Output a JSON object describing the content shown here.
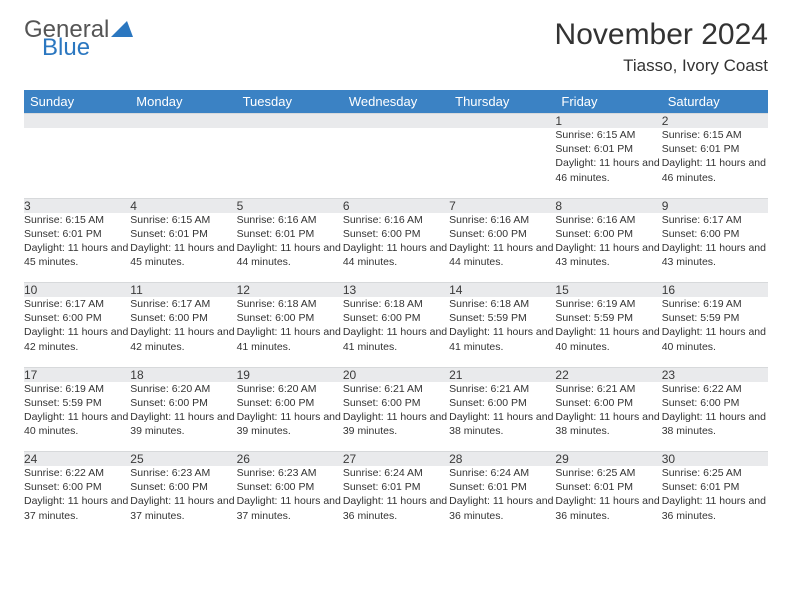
{
  "brand": {
    "part1": "General",
    "part2": "Blue",
    "color1": "#555555",
    "color2": "#2b77c0"
  },
  "title": "November 2024",
  "location": "Tiasso, Ivory Coast",
  "colors": {
    "header_bg": "#3b82c4",
    "header_text": "#ffffff",
    "daynum_bg": "#e9eaec",
    "text": "#333333",
    "page_bg": "#ffffff"
  },
  "fonts": {
    "title_size": 30,
    "location_size": 17,
    "header_size": 13,
    "daynum_size": 12,
    "cell_size": 10.5
  },
  "weekdays": [
    "Sunday",
    "Monday",
    "Tuesday",
    "Wednesday",
    "Thursday",
    "Friday",
    "Saturday"
  ],
  "weeks": [
    [
      null,
      null,
      null,
      null,
      null,
      {
        "n": "1",
        "sr": "6:15 AM",
        "ss": "6:01 PM",
        "dl": "11 hours and 46 minutes."
      },
      {
        "n": "2",
        "sr": "6:15 AM",
        "ss": "6:01 PM",
        "dl": "11 hours and 46 minutes."
      }
    ],
    [
      {
        "n": "3",
        "sr": "6:15 AM",
        "ss": "6:01 PM",
        "dl": "11 hours and 45 minutes."
      },
      {
        "n": "4",
        "sr": "6:15 AM",
        "ss": "6:01 PM",
        "dl": "11 hours and 45 minutes."
      },
      {
        "n": "5",
        "sr": "6:16 AM",
        "ss": "6:01 PM",
        "dl": "11 hours and 44 minutes."
      },
      {
        "n": "6",
        "sr": "6:16 AM",
        "ss": "6:00 PM",
        "dl": "11 hours and 44 minutes."
      },
      {
        "n": "7",
        "sr": "6:16 AM",
        "ss": "6:00 PM",
        "dl": "11 hours and 44 minutes."
      },
      {
        "n": "8",
        "sr": "6:16 AM",
        "ss": "6:00 PM",
        "dl": "11 hours and 43 minutes."
      },
      {
        "n": "9",
        "sr": "6:17 AM",
        "ss": "6:00 PM",
        "dl": "11 hours and 43 minutes."
      }
    ],
    [
      {
        "n": "10",
        "sr": "6:17 AM",
        "ss": "6:00 PM",
        "dl": "11 hours and 42 minutes."
      },
      {
        "n": "11",
        "sr": "6:17 AM",
        "ss": "6:00 PM",
        "dl": "11 hours and 42 minutes."
      },
      {
        "n": "12",
        "sr": "6:18 AM",
        "ss": "6:00 PM",
        "dl": "11 hours and 41 minutes."
      },
      {
        "n": "13",
        "sr": "6:18 AM",
        "ss": "6:00 PM",
        "dl": "11 hours and 41 minutes."
      },
      {
        "n": "14",
        "sr": "6:18 AM",
        "ss": "5:59 PM",
        "dl": "11 hours and 41 minutes."
      },
      {
        "n": "15",
        "sr": "6:19 AM",
        "ss": "5:59 PM",
        "dl": "11 hours and 40 minutes."
      },
      {
        "n": "16",
        "sr": "6:19 AM",
        "ss": "5:59 PM",
        "dl": "11 hours and 40 minutes."
      }
    ],
    [
      {
        "n": "17",
        "sr": "6:19 AM",
        "ss": "5:59 PM",
        "dl": "11 hours and 40 minutes."
      },
      {
        "n": "18",
        "sr": "6:20 AM",
        "ss": "6:00 PM",
        "dl": "11 hours and 39 minutes."
      },
      {
        "n": "19",
        "sr": "6:20 AM",
        "ss": "6:00 PM",
        "dl": "11 hours and 39 minutes."
      },
      {
        "n": "20",
        "sr": "6:21 AM",
        "ss": "6:00 PM",
        "dl": "11 hours and 39 minutes."
      },
      {
        "n": "21",
        "sr": "6:21 AM",
        "ss": "6:00 PM",
        "dl": "11 hours and 38 minutes."
      },
      {
        "n": "22",
        "sr": "6:21 AM",
        "ss": "6:00 PM",
        "dl": "11 hours and 38 minutes."
      },
      {
        "n": "23",
        "sr": "6:22 AM",
        "ss": "6:00 PM",
        "dl": "11 hours and 38 minutes."
      }
    ],
    [
      {
        "n": "24",
        "sr": "6:22 AM",
        "ss": "6:00 PM",
        "dl": "11 hours and 37 minutes."
      },
      {
        "n": "25",
        "sr": "6:23 AM",
        "ss": "6:00 PM",
        "dl": "11 hours and 37 minutes."
      },
      {
        "n": "26",
        "sr": "6:23 AM",
        "ss": "6:00 PM",
        "dl": "11 hours and 37 minutes."
      },
      {
        "n": "27",
        "sr": "6:24 AM",
        "ss": "6:01 PM",
        "dl": "11 hours and 36 minutes."
      },
      {
        "n": "28",
        "sr": "6:24 AM",
        "ss": "6:01 PM",
        "dl": "11 hours and 36 minutes."
      },
      {
        "n": "29",
        "sr": "6:25 AM",
        "ss": "6:01 PM",
        "dl": "11 hours and 36 minutes."
      },
      {
        "n": "30",
        "sr": "6:25 AM",
        "ss": "6:01 PM",
        "dl": "11 hours and 36 minutes."
      }
    ]
  ],
  "labels": {
    "sunrise": "Sunrise: ",
    "sunset": "Sunset: ",
    "daylight": "Daylight: "
  }
}
